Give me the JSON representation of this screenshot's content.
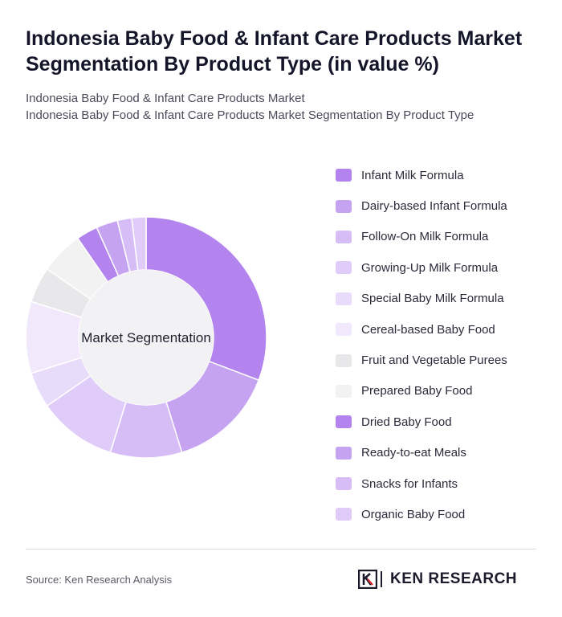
{
  "title": "Indonesia Baby Food & Infant Care Products Market Segmentation By Product Type (in value %)",
  "subtitle_lines": [
    "Indonesia Baby Food & Infant Care Products Market",
    "Indonesia Baby Food & Infant Care Products Market Segmentation By Product Type"
  ],
  "source": "Source: Ken Research Analysis",
  "logo": {
    "text": "KEN RESEARCH",
    "icon": "ken-research-k-logo"
  },
  "chart_data": {
    "type": "pie",
    "style": "donut",
    "center_label": "Market Segmentation",
    "legend_position": "right",
    "categories": [
      "Infant Milk Formula",
      "Dairy-based Infant Formula",
      "Follow-On Milk Formula",
      "Growing-Up Milk Formula",
      "Special Baby Milk Formula",
      "Cereal-based Baby Food",
      "Fruit and Vegetable Purees",
      "Prepared Baby Food",
      "Dried Baby Food",
      "Ready-to-eat Meals",
      "Snacks for Infants",
      "Organic Baby Food"
    ],
    "values": [
      32,
      15,
      10,
      11,
      5,
      10,
      5,
      6,
      3,
      3,
      2,
      2
    ],
    "colors": [
      "#b384ee",
      "#c6a3f1",
      "#d6bdf6",
      "#e0ccf8",
      "#e9dbfa",
      "#f1e8fc",
      "#e8e8ea",
      "#f2f2f3",
      "#b384ee",
      "#c6a3f1",
      "#d6bdf6",
      "#e0ccf8"
    ]
  }
}
